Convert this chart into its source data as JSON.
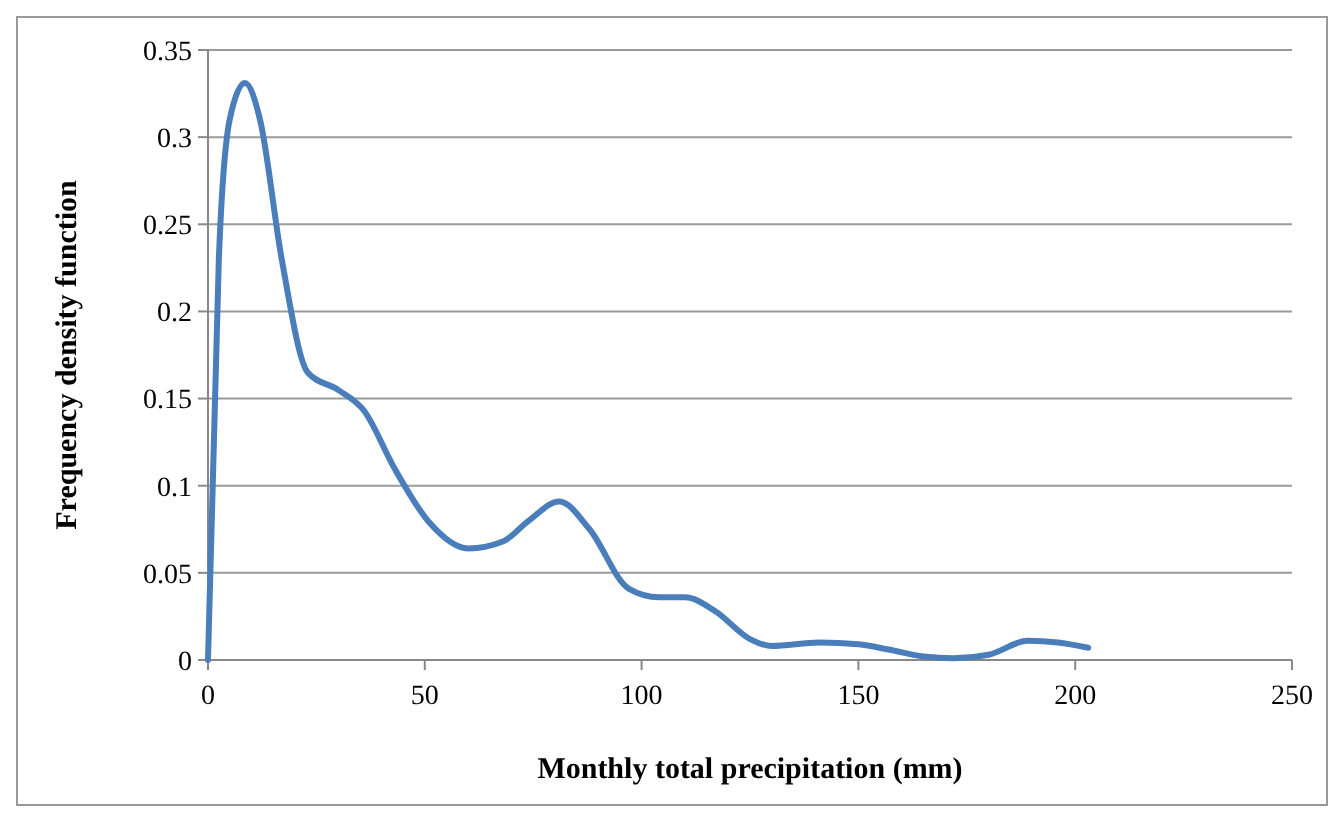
{
  "chart_data": {
    "type": "line",
    "xlabel": "Monthly total precipitation (mm)",
    "ylabel": "Frequency density function",
    "series": [
      {
        "color": "#4a7ebb",
        "x": [
          0,
          2.5,
          5,
          8.5,
          12,
          17,
          23,
          30,
          36,
          43,
          51,
          60,
          68,
          74,
          81,
          88,
          97,
          104,
          110,
          117,
          125,
          130,
          141,
          150,
          157,
          165,
          172,
          180,
          189,
          196,
          203
        ],
        "values": [
          0,
          0.23,
          0.31,
          0.331,
          0.31,
          0.23,
          0.165,
          0.155,
          0.143,
          0.11,
          0.079,
          0.064,
          0.068,
          0.08,
          0.091,
          0.075,
          0.041,
          0.036,
          0.036,
          0.028,
          0.012,
          0.008,
          0.01,
          0.009,
          0.006,
          0.002,
          0.001,
          0.003,
          0.011,
          0.01,
          0.007
        ]
      }
    ],
    "xlim": [
      0,
      250
    ],
    "xticks": [
      0,
      50,
      100,
      150,
      200,
      250
    ],
    "ylim": [
      0,
      0.35
    ],
    "yticks": [
      0,
      0.05,
      0.1,
      0.15,
      0.2,
      0.25,
      0.3,
      0.35
    ],
    "grid": "y",
    "marker": "none",
    "line_style": "solid"
  }
}
